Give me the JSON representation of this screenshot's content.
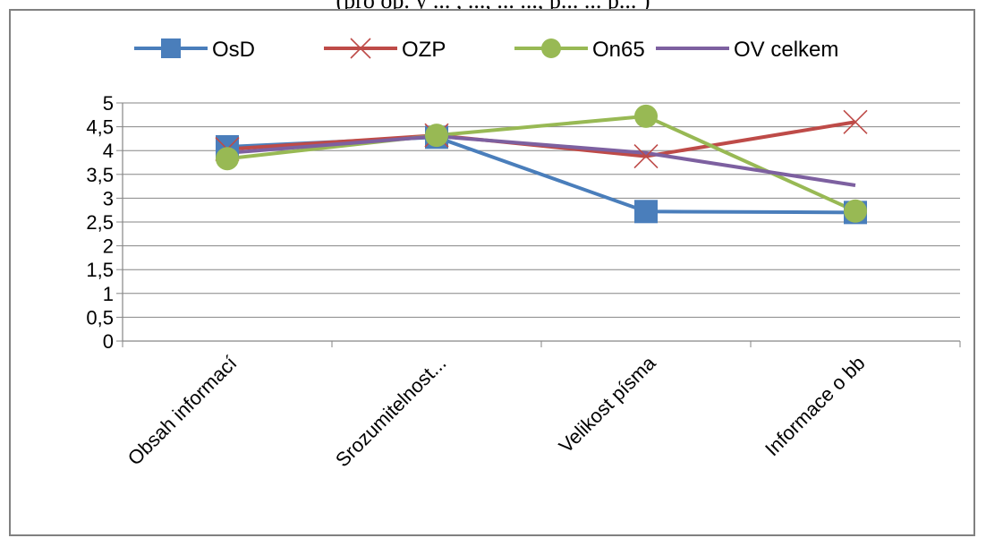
{
  "caption": "(pro op. y ... , ..., ... ..., p... ... p... )",
  "chart_data": {
    "type": "line",
    "categories": [
      "Obsah informací",
      "Srozumitelnost...",
      "Velikost písma",
      "Informace o bb"
    ],
    "y_ticks": [
      "0",
      "0,5",
      "1",
      "1,5",
      "2",
      "2,5",
      "3",
      "3,5",
      "4",
      "4,5",
      "5"
    ],
    "ylim": [
      0,
      5
    ],
    "grid": true,
    "legend_position": "top",
    "series": [
      {
        "name": "OsD",
        "values": [
          4.08,
          4.28,
          2.72,
          2.7
        ],
        "color": "#4a7ebb",
        "marker": "square"
      },
      {
        "name": "OZP",
        "values": [
          4.03,
          4.32,
          3.88,
          4.6
        ],
        "color": "#be4b48",
        "marker": "x"
      },
      {
        "name": "On65",
        "values": [
          3.83,
          4.32,
          4.72,
          2.73
        ],
        "color": "#98b954",
        "marker": "circle"
      },
      {
        "name": "OV celkem",
        "values": [
          3.95,
          4.3,
          3.95,
          3.27
        ],
        "color": "#7d60a0",
        "marker": "none"
      }
    ]
  }
}
